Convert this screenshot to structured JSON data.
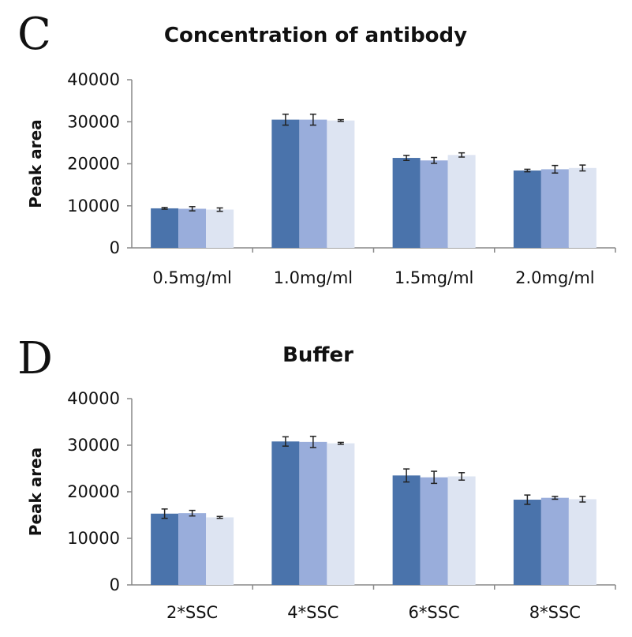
{
  "colors": [
    "#4a73ab",
    "#99addb",
    "#dde4f2"
  ],
  "chart_data": [
    {
      "panel": "C",
      "type": "bar",
      "title": "Concentration of antibody",
      "ylabel": "Peak area",
      "xlabel": "",
      "ylim": [
        0,
        40000
      ],
      "yticks": [
        0,
        10000,
        20000,
        30000,
        40000
      ],
      "categories": [
        "0.5mg/ml",
        "1.0mg/ml",
        "1.5mg/ml",
        "2.0mg/ml"
      ],
      "series": [
        {
          "values": [
            9400,
            30500,
            21400,
            18400
          ],
          "errors": [
            200,
            1300,
            600,
            300
          ]
        },
        {
          "values": [
            9300,
            30500,
            20800,
            18700
          ],
          "errors": [
            500,
            1300,
            700,
            900
          ]
        },
        {
          "values": [
            9100,
            30300,
            22100,
            19000
          ],
          "errors": [
            400,
            200,
            500,
            700
          ]
        }
      ]
    },
    {
      "panel": "D",
      "type": "bar",
      "title": "Buffer",
      "ylabel": "Peak area",
      "xlabel": "",
      "ylim": [
        0,
        40000
      ],
      "yticks": [
        0,
        10000,
        20000,
        30000,
        40000
      ],
      "categories": [
        "2*SSC",
        "4*SSC",
        "6*SSC",
        "8*SSC"
      ],
      "series": [
        {
          "values": [
            15300,
            30800,
            23500,
            18300
          ],
          "errors": [
            1000,
            1000,
            1400,
            1000
          ]
        },
        {
          "values": [
            15400,
            30700,
            23100,
            18700
          ],
          "errors": [
            600,
            1200,
            1300,
            300
          ]
        },
        {
          "values": [
            14500,
            30400,
            23300,
            18400
          ],
          "errors": [
            200,
            200,
            800,
            600
          ]
        }
      ]
    }
  ]
}
